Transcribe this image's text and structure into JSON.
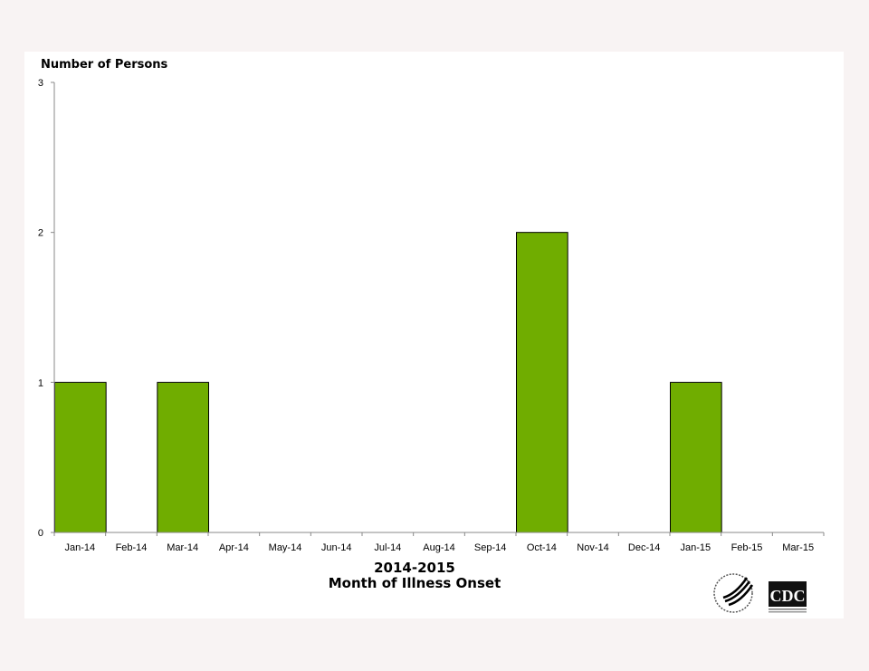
{
  "chart_data": {
    "type": "bar",
    "title": "",
    "ylabel": "Number of Persons",
    "xlabel_line1": "2014-2015",
    "xlabel_line2": "Month of Illness Onset",
    "categories": [
      "Jan-14",
      "Feb-14",
      "Mar-14",
      "Apr-14",
      "May-14",
      "Jun-14",
      "Jul-14",
      "Aug-14",
      "Sep-14",
      "Oct-14",
      "Nov-14",
      "Dec-14",
      "Jan-15",
      "Feb-15",
      "Mar-15"
    ],
    "values": [
      1,
      0,
      1,
      0,
      0,
      0,
      0,
      0,
      0,
      2,
      0,
      0,
      1,
      0,
      0
    ],
    "ylim": [
      0,
      3
    ],
    "yticks": [
      0,
      1,
      2,
      3
    ],
    "grid": false,
    "bar_color": "#70ad00"
  },
  "logos": {
    "hhs": "HHS seal",
    "cdc": "CDC"
  }
}
